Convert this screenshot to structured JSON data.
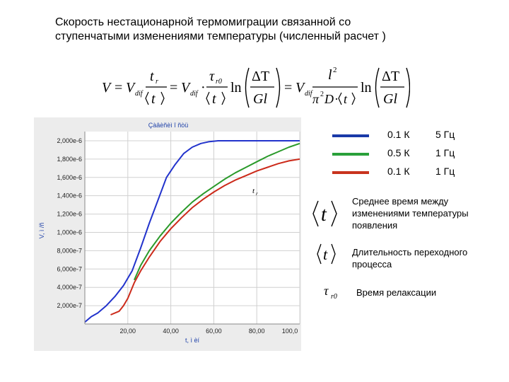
{
  "title": {
    "line1": "Скорость нестационарной термомиграции связанной со",
    "line2": "ступенчатыми изменениями температуры (численный расчет )"
  },
  "formula": {
    "V": "V",
    "eq": "=",
    "Vdif": "V",
    "dif_sub": "dif",
    "tr": "t",
    "tr_sub": "r",
    "t_avg": "t",
    "tau": "τ",
    "tau_sub": "r0",
    "ln": "ln",
    "delta_T": "ΔT",
    "Gl": "Gl",
    "l": "l",
    "l_sup": "2",
    "pi": "π",
    "pi_sup": "2",
    "D": "D",
    "dot": "·"
  },
  "chart_data": {
    "type": "line",
    "title": "Çàâèñèì î ñòü",
    "xlabel": "t, ì èí",
    "ylabel": "V, ì /ñ",
    "xlim": [
      0,
      100
    ],
    "ylim": [
      0,
      2.1e-06
    ],
    "xticks": [
      20,
      40,
      60,
      80,
      100
    ],
    "xtick_labels": [
      "20,00",
      "40,00",
      "60,00",
      "80,00",
      "100,0"
    ],
    "yticks": [
      2e-07,
      4e-07,
      6e-07,
      8e-07,
      1e-06,
      1.2e-06,
      1.4e-06,
      1.6e-06,
      1.8e-06,
      2e-06
    ],
    "ytick_labels": [
      "2,000e-7",
      "4,000e-7",
      "6,000e-7",
      "8,000e-7",
      "1,000e-6",
      "1,200e-6",
      "1,400e-6",
      "1,600e-6",
      "1,800e-6",
      "2,000e-6"
    ],
    "grid": true,
    "annotation": "t",
    "annotation_sub": "r",
    "series": [
      {
        "color": "#2233cc",
        "x": [
          0,
          3,
          6,
          10,
          14,
          18,
          22,
          26,
          30,
          34,
          38,
          42,
          46,
          50,
          54,
          58,
          62,
          66,
          70,
          75,
          80,
          90,
          100
        ],
        "y": [
          2e-08,
          8e-08,
          1.2e-07,
          2e-07,
          3e-07,
          4.2e-07,
          5.8e-07,
          8.3e-07,
          1.1e-06,
          1.35e-06,
          1.6e-06,
          1.74e-06,
          1.86e-06,
          1.93e-06,
          1.97e-06,
          1.99e-06,
          2e-06,
          2e-06,
          2e-06,
          2e-06,
          2e-06,
          2e-06,
          2e-06
        ]
      },
      {
        "color": "#2a9a2a",
        "x": [
          23,
          26,
          30,
          35,
          40,
          45,
          50,
          55,
          60,
          65,
          70,
          75,
          80,
          85,
          90,
          95,
          100
        ],
        "y": [
          4.8e-07,
          6.4e-07,
          8e-07,
          9.6e-07,
          1.1e-06,
          1.22e-06,
          1.33e-06,
          1.42e-06,
          1.5e-06,
          1.58e-06,
          1.65e-06,
          1.71e-06,
          1.77e-06,
          1.83e-06,
          1.88e-06,
          1.93e-06,
          1.97e-06
        ]
      },
      {
        "color": "#cc2a1a",
        "x": [
          12,
          16,
          18,
          20,
          23,
          26,
          30,
          35,
          40,
          45,
          50,
          55,
          60,
          65,
          70,
          75,
          80,
          85,
          90,
          95,
          100
        ],
        "y": [
          1e-07,
          1.4e-07,
          2e-07,
          2.8e-07,
          4.5e-07,
          5.8e-07,
          7.3e-07,
          9e-07,
          1.04e-06,
          1.16e-06,
          1.27e-06,
          1.36e-06,
          1.44e-06,
          1.51e-06,
          1.57e-06,
          1.62e-06,
          1.67e-06,
          1.71e-06,
          1.75e-06,
          1.78e-06,
          1.8e-06
        ]
      }
    ]
  },
  "legend": [
    {
      "color": "#1a3aa8",
      "value": "0.1 К",
      "freq": "5 Гц"
    },
    {
      "color": "#2aa03a",
      "value": "0.5 К",
      "freq": "1 Гц"
    },
    {
      "color": "#c8331e",
      "value": "0.1 К",
      "freq": " 1 Гц"
    }
  ],
  "definitions": [
    {
      "symbol": "t",
      "text": "Среднее время между изменениями температуры появления"
    },
    {
      "symbol": "t",
      "text": "Длительность переходного процесса"
    },
    {
      "symbol": "τ",
      "symbol_sub": "r0",
      "text": "Время релаксации"
    }
  ]
}
